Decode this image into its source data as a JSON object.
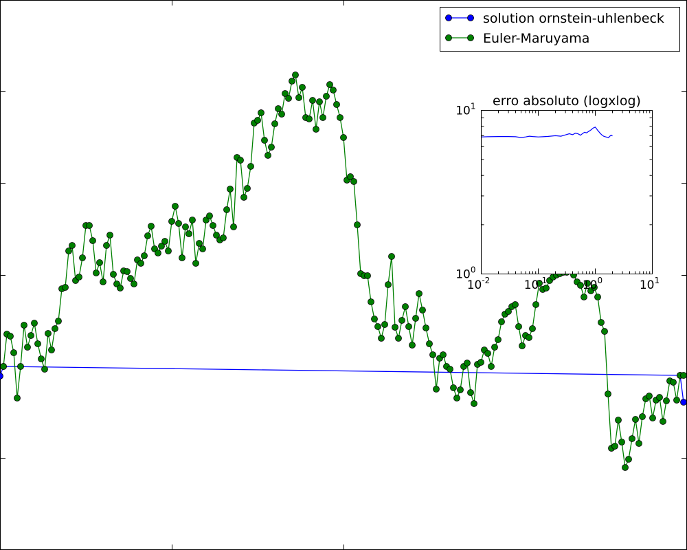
{
  "chart_data": [
    {
      "type": "line",
      "title": "",
      "xlabel": "",
      "ylabel": "",
      "grid": false,
      "legend": {
        "placement": "top-right",
        "entries": [
          "solution ornstein-uhlenbeck",
          "Euler-Maruyama"
        ]
      },
      "colors": {
        "exact": "#0000ff",
        "euler": "#008000",
        "marker_edge": "#000000"
      },
      "series": [
        {
          "name": "solution ornstein-uhlenbeck",
          "marker": "circle",
          "points": [
            [
              0,
              547
            ],
            [
              5,
              533
            ],
            [
              990,
              546
            ],
            [
              995,
              585
            ]
          ]
        },
        {
          "name": "Euler-Maruyama",
          "marker": "circle",
          "points": [
            [
              5,
              533
            ],
            [
              10,
              486
            ],
            [
              15,
              489
            ],
            [
              20,
              513
            ],
            [
              25,
              579
            ],
            [
              30,
              533
            ],
            [
              35,
              473
            ],
            [
              40,
              505
            ],
            [
              45,
              488
            ],
            [
              50,
              470
            ],
            [
              55,
              500
            ],
            [
              60,
              522
            ],
            [
              65,
              537
            ],
            [
              70,
              485
            ],
            [
              75,
              509
            ],
            [
              80,
              478
            ],
            [
              85,
              467
            ],
            [
              90,
              420
            ],
            [
              95,
              418
            ],
            [
              100,
              365
            ],
            [
              105,
              357
            ],
            [
              110,
              408
            ],
            [
              115,
              403
            ],
            [
              120,
              375
            ],
            [
              125,
              328
            ],
            [
              130,
              328
            ],
            [
              135,
              350
            ],
            [
              140,
              397
            ],
            [
              145,
              382
            ],
            [
              150,
              410
            ],
            [
              155,
              357
            ],
            [
              160,
              342
            ],
            [
              165,
              399
            ],
            [
              170,
              413
            ],
            [
              175,
              419
            ],
            [
              180,
              394
            ],
            [
              185,
              395
            ],
            [
              190,
              405
            ],
            [
              195,
              413
            ],
            [
              200,
              378
            ],
            [
              205,
              383
            ],
            [
              210,
              372
            ],
            [
              215,
              343
            ],
            [
              220,
              329
            ],
            [
              225,
              362
            ],
            [
              230,
              368
            ],
            [
              235,
              358
            ],
            [
              240,
              351
            ],
            [
              245,
              365
            ],
            [
              250,
              322
            ],
            [
              255,
              300
            ],
            [
              260,
              325
            ],
            [
              265,
              375
            ],
            [
              270,
              330
            ],
            [
              275,
              340
            ],
            [
              280,
              320
            ],
            [
              285,
              383
            ],
            [
              290,
              354
            ],
            [
              295,
              362
            ],
            [
              300,
              320
            ],
            [
              305,
              314
            ],
            [
              310,
              328
            ],
            [
              315,
              342
            ],
            [
              320,
              349
            ],
            [
              325,
              346
            ],
            [
              330,
              305
            ],
            [
              335,
              275
            ],
            [
              340,
              330
            ],
            [
              345,
              229
            ],
            [
              350,
              233
            ],
            [
              355,
              287
            ],
            [
              360,
              274
            ],
            [
              365,
              242
            ],
            [
              370,
              179
            ],
            [
              375,
              175
            ],
            [
              380,
              164
            ],
            [
              385,
              204
            ],
            [
              390,
              226
            ],
            [
              395,
              214
            ],
            [
              400,
              180
            ],
            [
              405,
              158
            ],
            [
              410,
              166
            ],
            [
              415,
              136
            ],
            [
              420,
              143
            ],
            [
              425,
              118
            ],
            [
              430,
              109
            ],
            [
              435,
              142
            ],
            [
              440,
              127
            ],
            [
              445,
              171
            ],
            [
              450,
              173
            ],
            [
              455,
              146
            ],
            [
              460,
              188
            ],
            [
              465,
              148
            ],
            [
              470,
              171
            ],
            [
              475,
              140
            ],
            [
              480,
              123
            ],
            [
              485,
              131
            ],
            [
              490,
              152
            ],
            [
              495,
              171
            ],
            [
              500,
              200
            ],
            [
              505,
              262
            ],
            [
              510,
              257
            ],
            [
              515,
              264
            ],
            [
              520,
              327
            ],
            [
              525,
              398
            ],
            [
              530,
              401
            ],
            [
              535,
              401
            ],
            [
              540,
              439
            ],
            [
              545,
              464
            ],
            [
              550,
              475
            ],
            [
              555,
              492
            ],
            [
              560,
              472
            ],
            [
              565,
              414
            ],
            [
              570,
              373
            ],
            [
              575,
              476
            ],
            [
              580,
              492
            ],
            [
              585,
              466
            ],
            [
              590,
              446
            ],
            [
              595,
              475
            ],
            [
              600,
              502
            ],
            [
              605,
              463
            ],
            [
              610,
              427
            ],
            [
              615,
              451
            ],
            [
              620,
              477
            ],
            [
              625,
              500
            ],
            [
              630,
              516
            ],
            [
              635,
              566
            ],
            [
              640,
              521
            ],
            [
              645,
              516
            ],
            [
              650,
              533
            ],
            [
              655,
              537
            ],
            [
              660,
              564
            ],
            [
              665,
              579
            ],
            [
              670,
              567
            ],
            [
              675,
              533
            ],
            [
              680,
              528
            ],
            [
              685,
              571
            ],
            [
              690,
              587
            ],
            [
              695,
              530
            ],
            [
              700,
              527
            ],
            [
              705,
              509
            ],
            [
              710,
              514
            ],
            [
              715,
              533
            ],
            [
              720,
              505
            ],
            [
              725,
              494
            ],
            [
              730,
              468
            ],
            [
              735,
              457
            ],
            [
              740,
              453
            ],
            [
              745,
              446
            ],
            [
              750,
              443
            ],
            [
              755,
              475
            ],
            [
              760,
              503
            ],
            [
              765,
              488
            ],
            [
              770,
              491
            ],
            [
              775,
              478
            ],
            [
              780,
              443
            ],
            [
              785,
              412
            ],
            [
              790,
              421
            ],
            [
              795,
              419
            ],
            [
              800,
              408
            ],
            [
              805,
              403
            ],
            [
              810,
              400
            ],
            [
              815,
              398
            ],
            [
              820,
              396
            ],
            [
              825,
              396
            ],
            [
              830,
              394
            ],
            [
              835,
              400
            ],
            [
              840,
              410
            ],
            [
              845,
              415
            ],
            [
              850,
              432
            ],
            [
              855,
              412
            ],
            [
              860,
              423
            ],
            [
              865,
              418
            ],
            [
              870,
              432
            ],
            [
              875,
              469
            ],
            [
              880,
              482
            ],
            [
              885,
              573
            ],
            [
              890,
              652
            ],
            [
              895,
              649
            ],
            [
              900,
              611
            ],
            [
              905,
              643
            ],
            [
              910,
              680
            ],
            [
              915,
              668
            ],
            [
              920,
              638
            ],
            [
              925,
              610
            ],
            [
              930,
              645
            ],
            [
              935,
              606
            ],
            [
              940,
              580
            ],
            [
              945,
              576
            ],
            [
              950,
              608
            ],
            [
              955,
              582
            ],
            [
              960,
              578
            ],
            [
              965,
              613
            ],
            [
              970,
              583
            ],
            [
              975,
              554
            ],
            [
              980,
              556
            ],
            [
              985,
              582
            ],
            [
              990,
              546
            ],
            [
              995,
              546
            ]
          ]
        }
      ]
    },
    {
      "type": "line",
      "title": "erro absoluto (logxlog)",
      "xscale": "log",
      "yscale": "log",
      "xlim": [
        0.01,
        10
      ],
      "ylim": [
        1,
        10
      ],
      "xticks": [
        "10-2",
        "10-1",
        "100",
        "101"
      ],
      "yticks": [
        "100",
        "101"
      ],
      "series": [
        {
          "color": "#0000ff",
          "x": [
            0.01,
            0.013,
            0.02,
            0.03,
            0.04,
            0.05,
            0.06,
            0.07,
            0.08,
            0.1,
            0.12,
            0.15,
            0.2,
            0.25,
            0.3,
            0.35,
            0.4,
            0.45,
            0.5,
            0.55,
            0.6,
            0.65,
            0.7,
            0.75,
            0.8,
            0.85,
            0.9,
            0.95,
            1.0,
            1.05,
            1.1,
            1.15,
            1.2,
            1.3,
            1.4,
            1.5,
            1.6,
            1.7,
            1.8,
            1.9,
            2.0
          ],
          "y": [
            6.88,
            6.9,
            6.92,
            6.92,
            6.9,
            6.82,
            6.88,
            6.95,
            6.92,
            6.88,
            6.9,
            6.93,
            7.0,
            6.95,
            7.08,
            7.2,
            7.1,
            7.25,
            7.18,
            7.05,
            7.22,
            7.35,
            7.28,
            7.4,
            7.5,
            7.62,
            7.75,
            7.85,
            7.9,
            7.72,
            7.55,
            7.42,
            7.28,
            7.08,
            6.95,
            6.9,
            6.85,
            6.8,
            6.95,
            7.05,
            6.98
          ]
        }
      ]
    }
  ]
}
